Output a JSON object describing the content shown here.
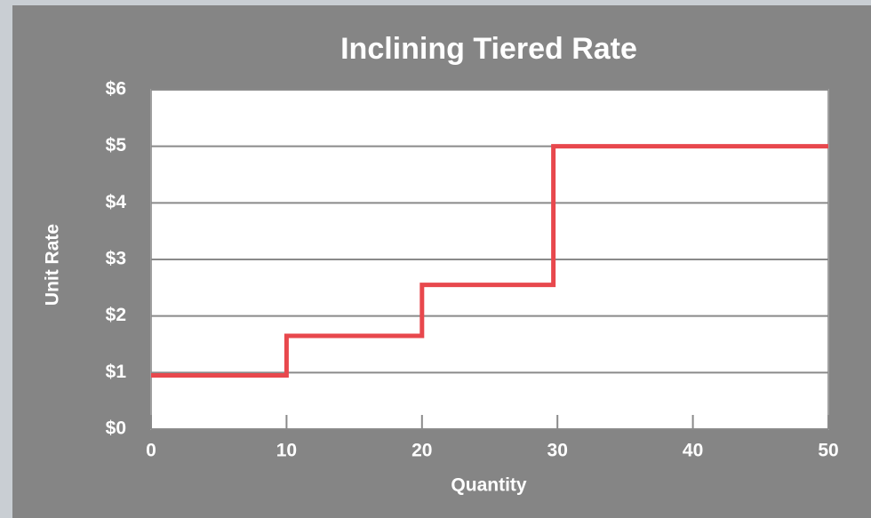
{
  "chart_data": {
    "type": "line",
    "title": "Inclining Tiered Rate",
    "xlabel": "Quantity",
    "ylabel": "Unit Rate",
    "x": [
      0,
      10,
      10,
      20,
      20,
      29.7,
      29.7,
      50
    ],
    "series": [
      {
        "color": "#e8484d",
        "values": [
          0.95,
          0.95,
          1.65,
          1.65,
          2.55,
          2.55,
          5,
          5
        ]
      }
    ],
    "xlim": [
      0,
      50
    ],
    "xticks": [
      0,
      10,
      20,
      30,
      40,
      50
    ],
    "ylim": [
      0,
      6
    ],
    "yticks": [
      {
        "value": 0,
        "label": "$0"
      },
      {
        "value": 1,
        "label": "$1"
      },
      {
        "value": 2,
        "label": "$2"
      },
      {
        "value": 3,
        "label": "$3"
      },
      {
        "value": 4,
        "label": "$4"
      },
      {
        "value": 5,
        "label": "$5"
      },
      {
        "value": 6,
        "label": "$6"
      }
    ],
    "grid": true
  }
}
